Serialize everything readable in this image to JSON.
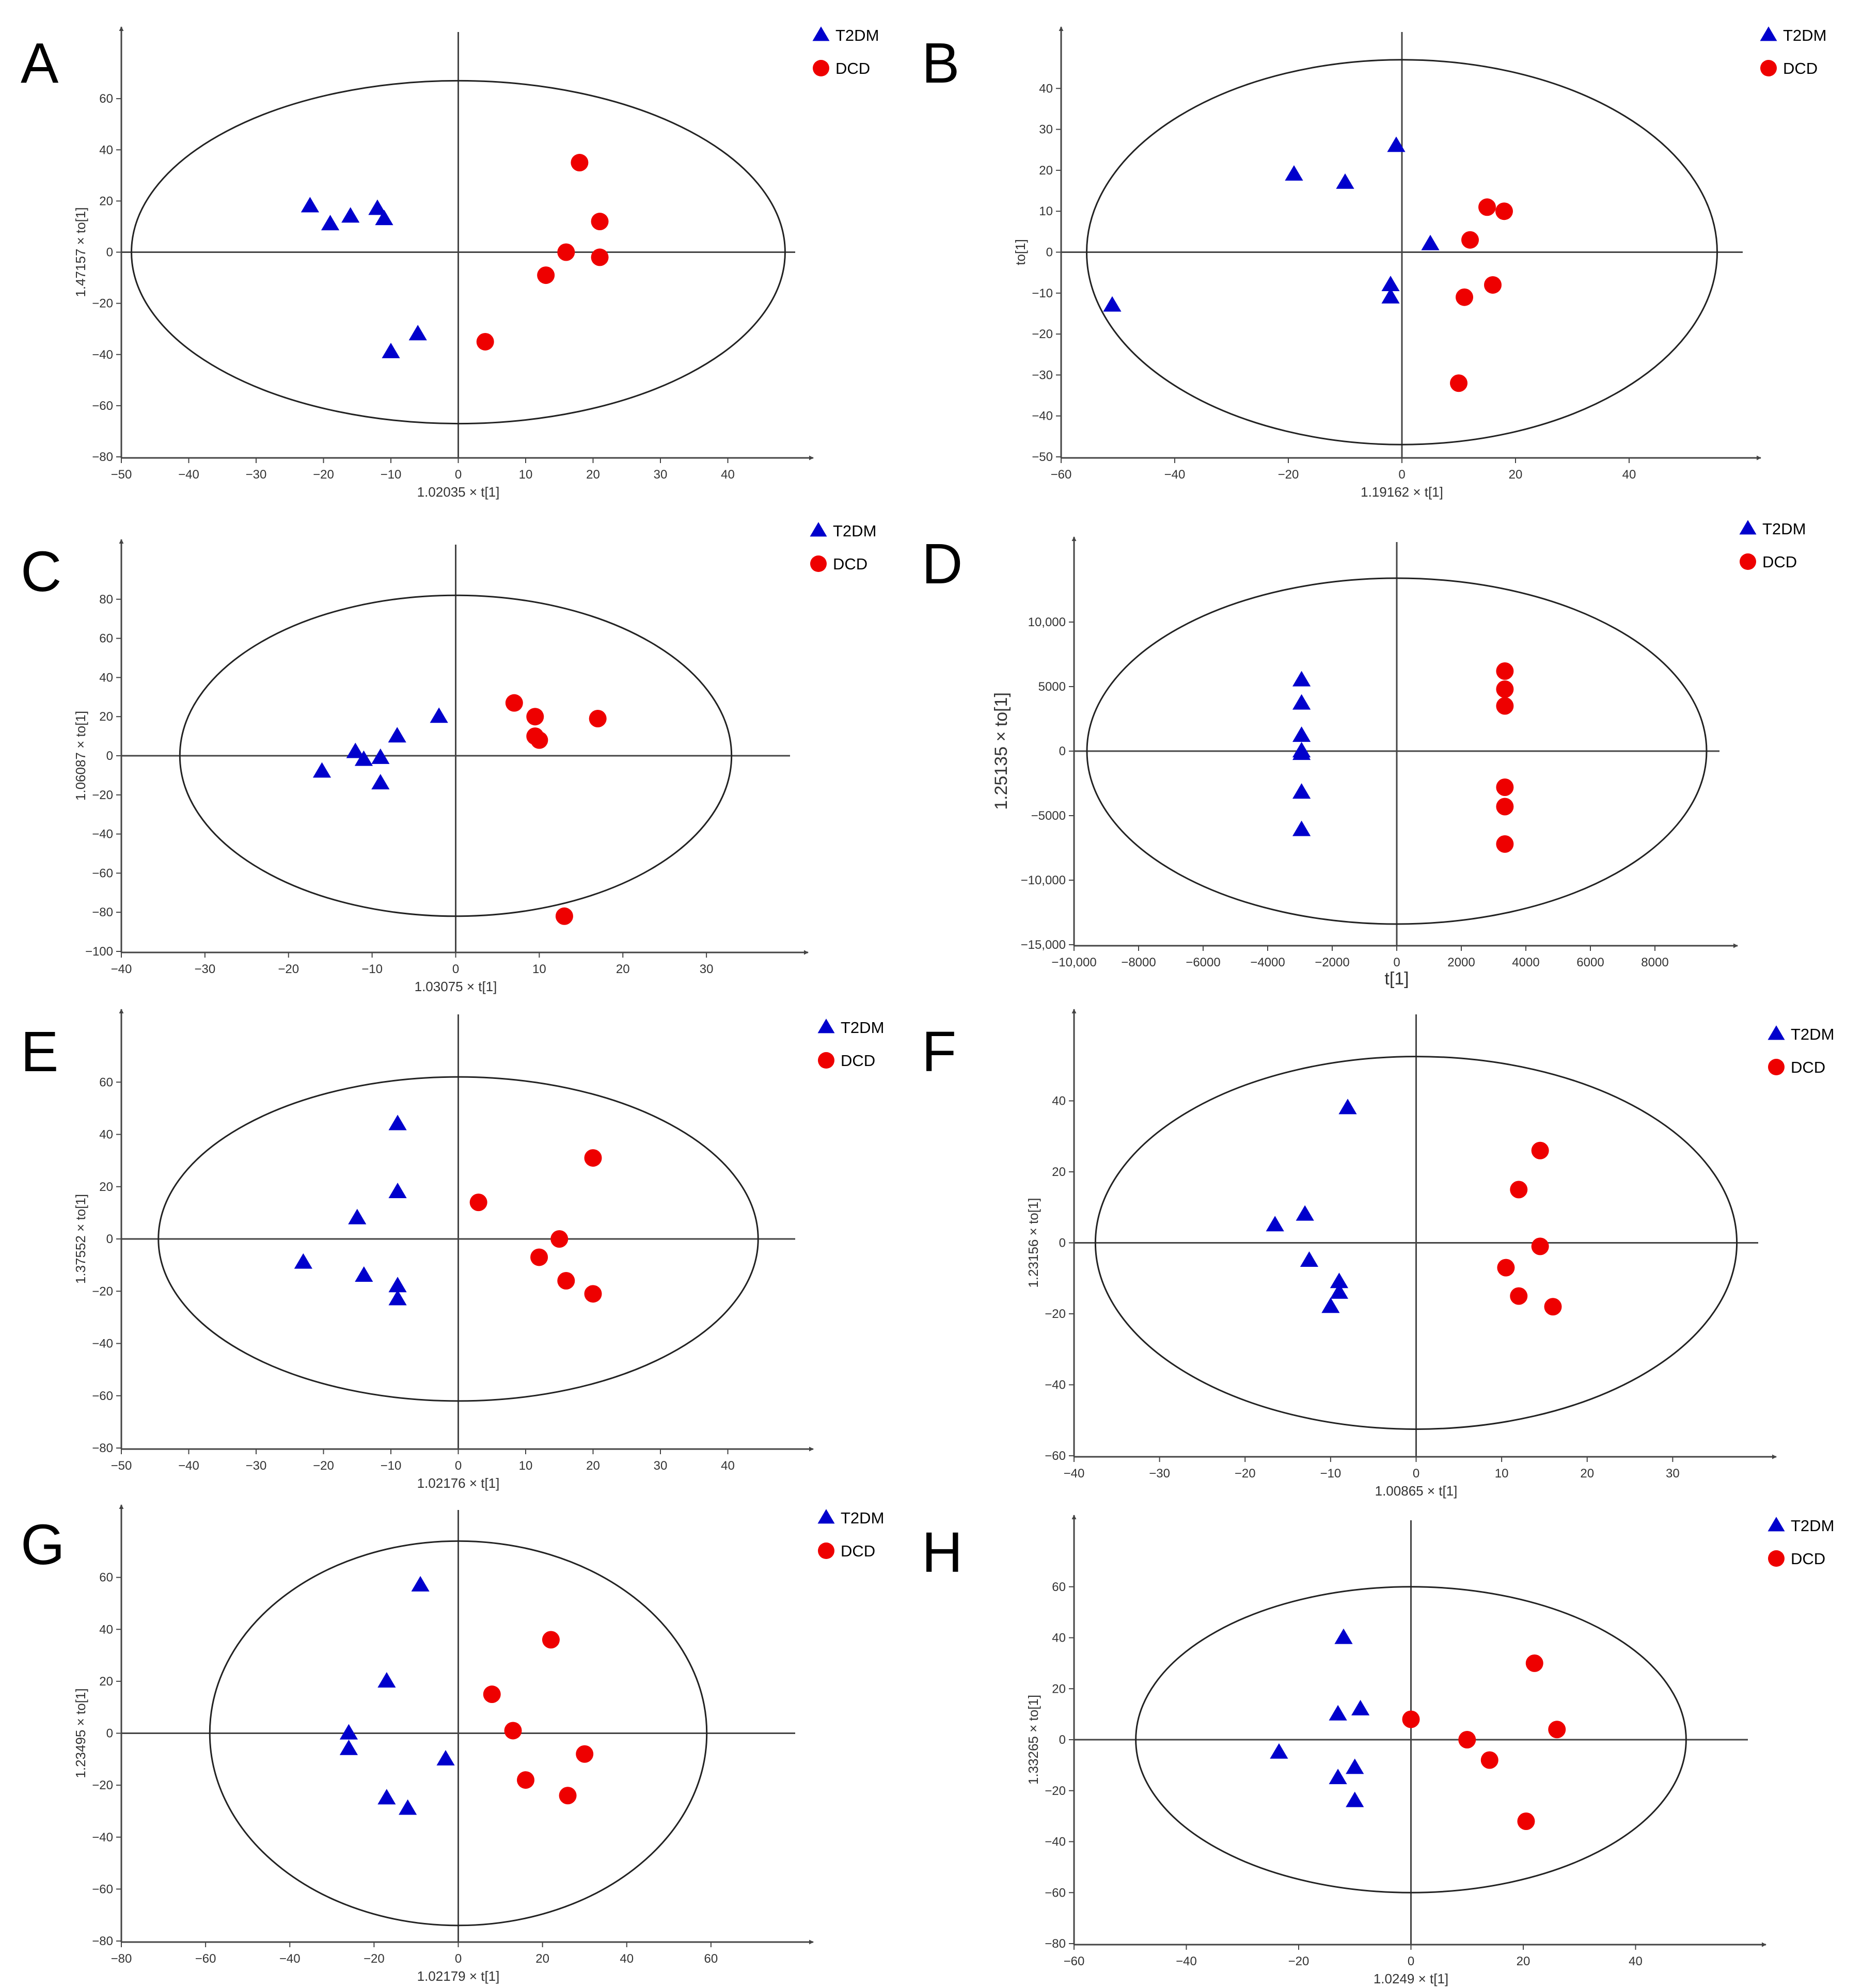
{
  "colors": {
    "t2dm": "#0000cc",
    "dcd": "#ee0000",
    "axis": "#444444",
    "ellipse": "#222222"
  },
  "chart_data": [
    {
      "panel": "A",
      "type": "scatter",
      "xlabel": "1.02035 × t[1]",
      "ylabel": "1.47157 × to[1]",
      "xlim": [
        -50,
        50
      ],
      "ylim": [
        -80,
        80
      ],
      "xticks": [
        "−50",
        "−40",
        "−30",
        "−20",
        "−10",
        "0",
        "10",
        "20",
        "30",
        "40"
      ],
      "yticks": [
        "60",
        "40",
        "20",
        "0",
        "−20",
        "−40",
        "−60",
        "−80"
      ],
      "ellipse": {
        "rx": 48.5,
        "ry": 67
      },
      "legend": [
        "T2DM",
        "DCD"
      ],
      "series": [
        {
          "name": "T2DM",
          "marker": "triangle",
          "points": [
            [
              -22,
              18
            ],
            [
              -19,
              11
            ],
            [
              -16,
              14
            ],
            [
              -12,
              17
            ],
            [
              -11,
              13
            ],
            [
              -10,
              -39
            ],
            [
              -6,
              -32
            ]
          ]
        },
        {
          "name": "DCD",
          "marker": "circle",
          "points": [
            [
              18,
              35
            ],
            [
              21,
              12
            ],
            [
              16,
              0
            ],
            [
              21,
              -2
            ],
            [
              13,
              -9
            ],
            [
              4,
              -35
            ]
          ]
        }
      ]
    },
    {
      "panel": "B",
      "type": "scatter",
      "xlabel": "1.19162 × t[1]",
      "ylabel": "to[1]",
      "xlim": [
        -60,
        60
      ],
      "ylim": [
        -50,
        50
      ],
      "xticks": [
        "−60",
        "−40",
        "−20",
        "0",
        "20",
        "40"
      ],
      "yticks": [
        "40",
        "30",
        "20",
        "10",
        "0",
        "−10",
        "−20",
        "−30",
        "−40",
        "−50"
      ],
      "ellipse": {
        "rx": 55.5,
        "ry": 47
      },
      "legend": [
        "T2DM",
        "DCD"
      ],
      "series": [
        {
          "name": "T2DM",
          "marker": "triangle",
          "points": [
            [
              -19,
              19
            ],
            [
              -10,
              17
            ],
            [
              -1,
              26
            ],
            [
              5,
              2
            ],
            [
              -2,
              -8
            ],
            [
              -2,
              -11
            ],
            [
              -51,
              -13
            ]
          ]
        },
        {
          "name": "DCD",
          "marker": "circle",
          "points": [
            [
              15,
              11
            ],
            [
              18,
              10
            ],
            [
              12,
              3
            ],
            [
              16,
              -8
            ],
            [
              11,
              -11
            ],
            [
              10,
              -32
            ]
          ]
        }
      ]
    },
    {
      "panel": "C",
      "type": "scatter",
      "xlabel": "1.03075 × t[1]",
      "ylabel": "1.06087 × to[1]",
      "xlim": [
        -40,
        40
      ],
      "ylim": [
        -100,
        100
      ],
      "xticks": [
        "−40",
        "−30",
        "−20",
        "−10",
        "0",
        "10",
        "20",
        "30"
      ],
      "yticks": [
        "80",
        "60",
        "40",
        "20",
        "0",
        "−20",
        "−40",
        "−60",
        "−80",
        "−100"
      ],
      "ellipse": {
        "rx": 33,
        "ry": 82
      },
      "legend": [
        "T2DM",
        "DCD"
      ],
      "series": [
        {
          "name": "T2DM",
          "marker": "triangle",
          "points": [
            [
              -2,
              20
            ],
            [
              -7,
              10
            ],
            [
              -12,
              2
            ],
            [
              -11,
              -2
            ],
            [
              -9,
              -1
            ],
            [
              -9,
              -14
            ],
            [
              -16,
              -8
            ]
          ]
        },
        {
          "name": "DCD",
          "marker": "circle",
          "points": [
            [
              7,
              27
            ],
            [
              9.5,
              20
            ],
            [
              17,
              19
            ],
            [
              9.5,
              10
            ],
            [
              10,
              8
            ],
            [
              13,
              -82
            ]
          ]
        }
      ]
    },
    {
      "panel": "D",
      "type": "scatter",
      "xlabel": "t[1]",
      "ylabel": "1.25135 × to[1]",
      "xlim": [
        -10000,
        10000
      ],
      "ylim": [
        -15000,
        15000
      ],
      "xticks": [
        "−10,000",
        "−8000",
        "−6000",
        "−4000",
        "−2000",
        "0",
        "2000",
        "4000",
        "6000",
        "8000"
      ],
      "yticks": [
        "10,000",
        "5000",
        "0",
        "−5000",
        "−10,000",
        "−15,000"
      ],
      "ellipse": {
        "rx": 9600,
        "ry": 13400
      },
      "legend": [
        "T2DM",
        "DCD"
      ],
      "series": [
        {
          "name": "T2DM",
          "marker": "triangle",
          "points": [
            [
              -2950,
              5500
            ],
            [
              -2950,
              3700
            ],
            [
              -2950,
              1200
            ],
            [
              -2950,
              0
            ],
            [
              -2950,
              -200
            ],
            [
              -2950,
              -3200
            ],
            [
              -2950,
              -6100
            ]
          ]
        },
        {
          "name": "DCD",
          "marker": "circle",
          "points": [
            [
              3350,
              6200
            ],
            [
              3350,
              4800
            ],
            [
              3350,
              3500
            ],
            [
              3350,
              -2800
            ],
            [
              3350,
              -4300
            ],
            [
              3350,
              -7200
            ]
          ]
        }
      ]
    },
    {
      "panel": "E",
      "type": "scatter",
      "xlabel": "1.02176 × t[1]",
      "ylabel": "1.37552 × to[1]",
      "xlim": [
        -50,
        50
      ],
      "ylim": [
        -80,
        80
      ],
      "xticks": [
        "−50",
        "−40",
        "−30",
        "−20",
        "−10",
        "0",
        "10",
        "20",
        "30",
        "40"
      ],
      "yticks": [
        "60",
        "40",
        "20",
        "0",
        "−20",
        "−40",
        "−60",
        "−80"
      ],
      "ellipse": {
        "rx": 44.5,
        "ry": 62
      },
      "legend": [
        "T2DM",
        "DCD"
      ],
      "series": [
        {
          "name": "T2DM",
          "marker": "triangle",
          "points": [
            [
              -9,
              44
            ],
            [
              -9,
              18
            ],
            [
              -15,
              8
            ],
            [
              -23,
              -9
            ],
            [
              -14,
              -14
            ],
            [
              -9,
              -18
            ],
            [
              -9,
              -23
            ]
          ]
        },
        {
          "name": "DCD",
          "marker": "circle",
          "points": [
            [
              20,
              31
            ],
            [
              3,
              14
            ],
            [
              15,
              0
            ],
            [
              12,
              -7
            ],
            [
              16,
              -16
            ],
            [
              20,
              -21
            ]
          ]
        }
      ]
    },
    {
      "panel": "F",
      "type": "scatter",
      "xlabel": "1.00865 × t[1]",
      "ylabel": "1.23156 × to[1]",
      "xlim": [
        -40,
        40
      ],
      "ylim": [
        -60,
        60
      ],
      "xticks": [
        "−40",
        "−30",
        "−20",
        "−10",
        "0",
        "10",
        "20",
        "30"
      ],
      "yticks": [
        "40",
        "20",
        "0",
        "−20",
        "−40",
        "−60"
      ],
      "ellipse": {
        "rx": 37.5,
        "ry": 52.5
      },
      "legend": [
        "T2DM",
        "DCD"
      ],
      "series": [
        {
          "name": "T2DM",
          "marker": "triangle",
          "points": [
            [
              -8,
              38
            ],
            [
              -16.5,
              5
            ],
            [
              -13,
              8
            ],
            [
              -12.5,
              -5
            ],
            [
              -9,
              -11
            ],
            [
              -9,
              -14
            ],
            [
              -10,
              -18
            ]
          ]
        },
        {
          "name": "DCD",
          "marker": "circle",
          "points": [
            [
              14.5,
              26
            ],
            [
              12,
              15
            ],
            [
              14.5,
              -1
            ],
            [
              10.5,
              -7
            ],
            [
              12,
              -15
            ],
            [
              16,
              -18
            ]
          ]
        }
      ]
    },
    {
      "panel": "G",
      "type": "scatter",
      "xlabel": "1.02179 × t[1]",
      "ylabel": "1.23495 × to[1]",
      "xlim": [
        -80,
        80
      ],
      "ylim": [
        -80,
        80
      ],
      "xticks": [
        "−80",
        "−60",
        "−40",
        "−20",
        "0",
        "20",
        "40",
        "60"
      ],
      "yticks": [
        "60",
        "40",
        "20",
        "0",
        "−20",
        "−40",
        "−60",
        "−80"
      ],
      "ellipse": {
        "rx": 59,
        "ry": 74
      },
      "legend": [
        "T2DM",
        "DCD"
      ],
      "series": [
        {
          "name": "T2DM",
          "marker": "triangle",
          "points": [
            [
              -9,
              57
            ],
            [
              -17,
              20
            ],
            [
              -26,
              0
            ],
            [
              -26,
              -6
            ],
            [
              -3,
              -10
            ],
            [
              -17,
              -25
            ],
            [
              -12,
              -29
            ]
          ]
        },
        {
          "name": "DCD",
          "marker": "circle",
          "points": [
            [
              22,
              36
            ],
            [
              8,
              15
            ],
            [
              13,
              1
            ],
            [
              30,
              -8
            ],
            [
              16,
              -18
            ],
            [
              26,
              -24
            ]
          ]
        }
      ]
    },
    {
      "panel": "H",
      "type": "scatter",
      "xlabel": "1.0249 × t[1]",
      "ylabel": "1.33265 × to[1]",
      "xlim": [
        -60,
        60
      ],
      "ylim": [
        -80,
        80
      ],
      "xticks": [
        "−60",
        "−40",
        "−20",
        "0",
        "20",
        "40"
      ],
      "yticks": [
        "60",
        "40",
        "20",
        "0",
        "−20",
        "−40",
        "−60",
        "−80"
      ],
      "ellipse": {
        "rx": 49,
        "ry": 60
      },
      "legend": [
        "T2DM",
        "DCD"
      ],
      "series": [
        {
          "name": "T2DM",
          "marker": "triangle",
          "points": [
            [
              -12,
              40
            ],
            [
              -13,
              10
            ],
            [
              -9,
              12
            ],
            [
              -23.5,
              -5
            ],
            [
              -13,
              -15
            ],
            [
              -10,
              -11
            ],
            [
              -10,
              -24
            ]
          ]
        },
        {
          "name": "DCD",
          "marker": "circle",
          "points": [
            [
              0,
              8
            ],
            [
              10,
              0
            ],
            [
              22,
              30
            ],
            [
              26,
              4
            ],
            [
              14,
              -8
            ],
            [
              20.5,
              -32
            ]
          ]
        }
      ]
    }
  ]
}
